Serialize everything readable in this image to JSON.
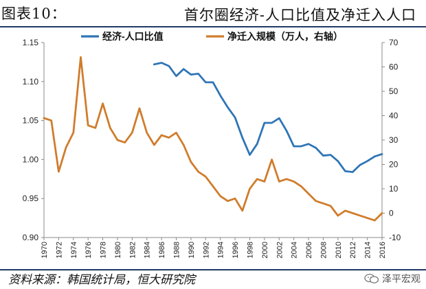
{
  "figure": {
    "label": "图表10：",
    "title": "首尔圈经济-人口比值及净迁入人口"
  },
  "source_text": "资料来源：韩国统计局，恒大研究院",
  "watermark": "泽平宏观",
  "colors": {
    "series1": "#2E75B6",
    "series2": "#D07C2C",
    "rule": "#1F3864"
  },
  "chart_data": {
    "type": "line",
    "x_ticks": [
      "1970",
      "1972",
      "1974",
      "1976",
      "1978",
      "1980",
      "1982",
      "1984",
      "1986",
      "1988",
      "1990",
      "1992",
      "1994",
      "1996",
      "1998",
      "2000",
      "2002",
      "2004",
      "2006",
      "2008",
      "2010",
      "2012",
      "2014",
      "2016"
    ],
    "xlim": [
      1970,
      2016
    ],
    "ylim_left": [
      0.9,
      1.15
    ],
    "yticks_left": [
      "0.90",
      "0.95",
      "1.00",
      "1.05",
      "1.10",
      "1.15"
    ],
    "ylim_right": [
      -10,
      70
    ],
    "yticks_right": [
      "-10",
      "0",
      "10",
      "20",
      "30",
      "40",
      "50",
      "60",
      "70"
    ],
    "legend_position": "top",
    "grid": false,
    "series": [
      {
        "name": "经济-人口比值",
        "axis": "left",
        "x": [
          1985,
          1986,
          1987,
          1988,
          1989,
          1990,
          1991,
          1992,
          1993,
          1994,
          1995,
          1996,
          1997,
          1998,
          1999,
          2000,
          2001,
          2002,
          2003,
          2004,
          2005,
          2006,
          2007,
          2008,
          2009,
          2010,
          2011,
          2012,
          2013,
          2014,
          2015,
          2016
        ],
        "y": [
          1.122,
          1.124,
          1.12,
          1.107,
          1.116,
          1.109,
          1.11,
          1.099,
          1.099,
          1.082,
          1.067,
          1.054,
          1.028,
          1.006,
          1.02,
          1.047,
          1.047,
          1.053,
          1.037,
          1.017,
          1.017,
          1.02,
          1.015,
          1.005,
          1.006,
          0.998,
          0.985,
          0.984,
          0.993,
          0.998,
          1.004,
          1.007
        ]
      },
      {
        "name": "净迁入规模（万人，右轴）",
        "axis": "right",
        "x": [
          1970,
          1971,
          1972,
          1973,
          1974,
          1975,
          1976,
          1977,
          1978,
          1979,
          1980,
          1981,
          1982,
          1983,
          1984,
          1985,
          1986,
          1987,
          1988,
          1989,
          1990,
          1991,
          1992,
          1993,
          1994,
          1995,
          1996,
          1997,
          1998,
          1999,
          2000,
          2001,
          2002,
          2003,
          2004,
          2005,
          2006,
          2007,
          2008,
          2009,
          2010,
          2011,
          2012,
          2013,
          2014,
          2015,
          2016
        ],
        "y": [
          39,
          38,
          17,
          27,
          33,
          64,
          36,
          35,
          45,
          35,
          30,
          29,
          33,
          43,
          33,
          28,
          32,
          31,
          33,
          28,
          21,
          17,
          15,
          11,
          7,
          5,
          6,
          1,
          10,
          14,
          13,
          22,
          13,
          14,
          13,
          11,
          8,
          5,
          4,
          3,
          -1,
          1,
          0,
          -1,
          -2,
          -3,
          0
        ]
      }
    ]
  }
}
